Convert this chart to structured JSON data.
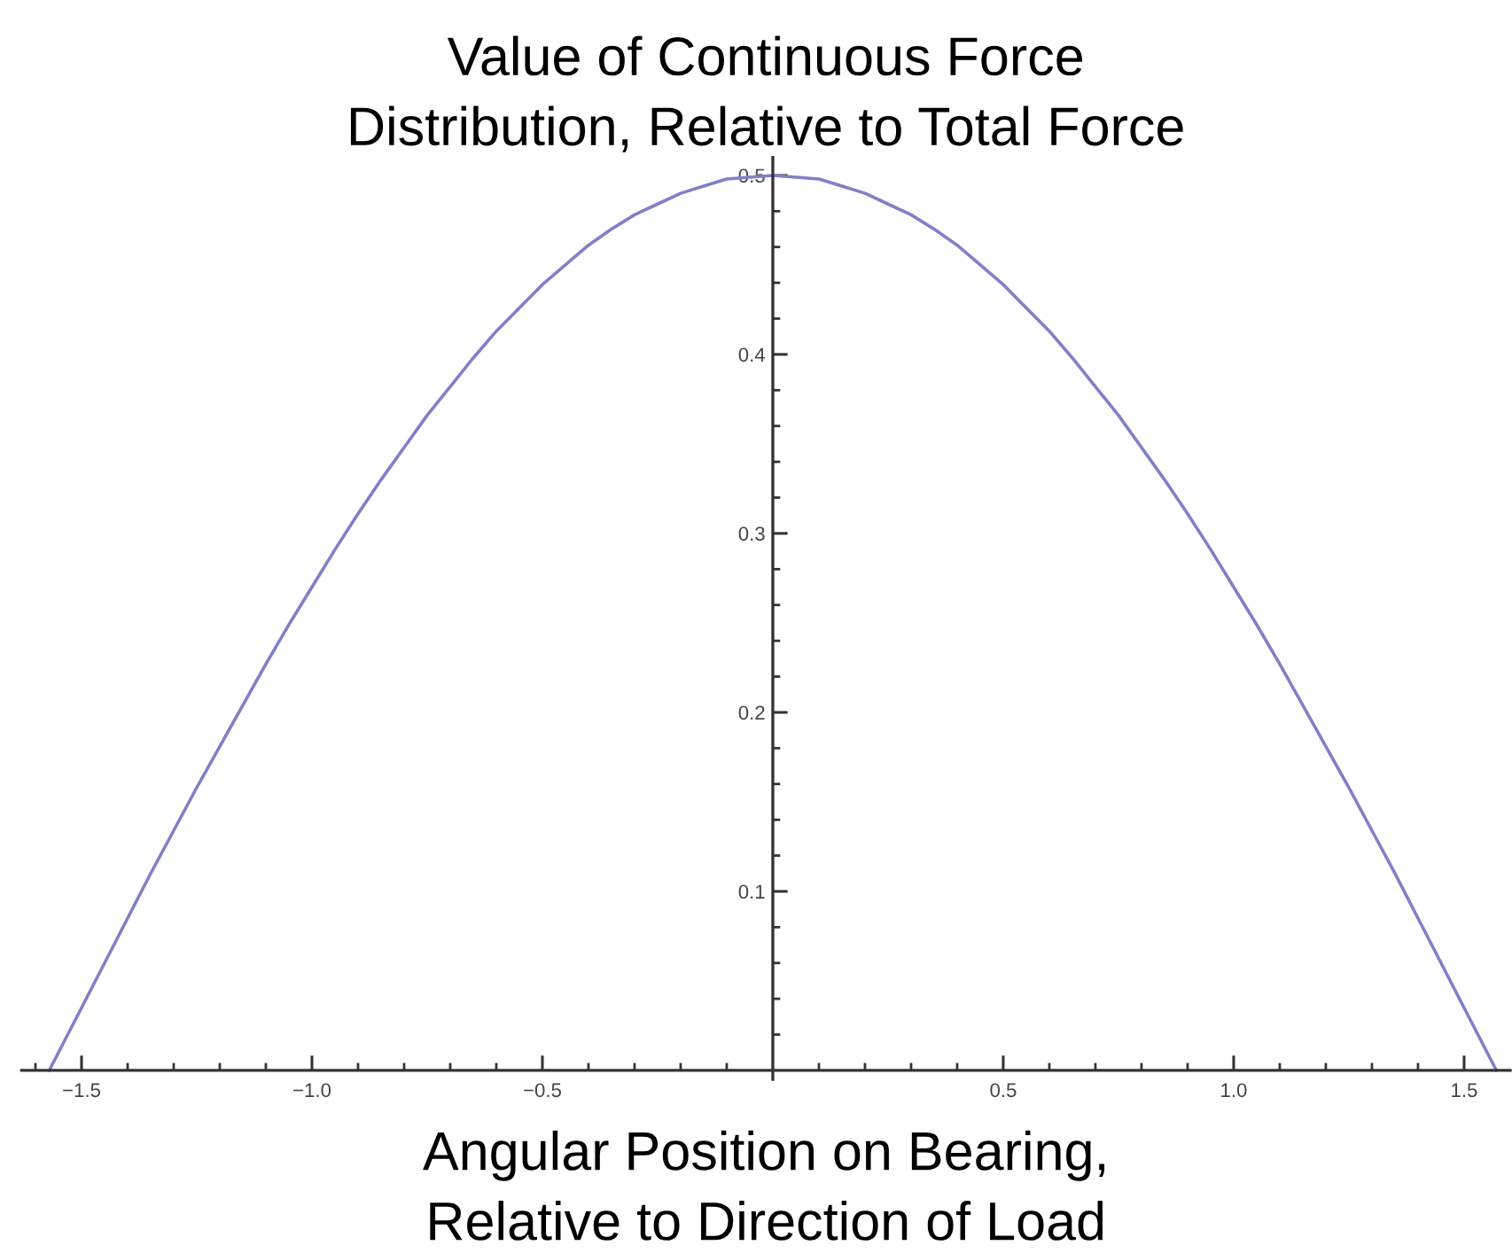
{
  "chart_data": {
    "type": "line",
    "title": "Value of Continuous Force\nDistribution, Relative to Total Force",
    "xlabel": "Angular Position on Bearing,\nRelative to Direction of Load",
    "x": [
      -1.57,
      -1.55,
      -1.5,
      -1.45,
      -1.4,
      -1.35,
      -1.3,
      -1.25,
      -1.2,
      -1.15,
      -1.1,
      -1.05,
      -1.0,
      -0.95,
      -0.9,
      -0.85,
      -0.8,
      -0.75,
      -0.7,
      -0.65,
      -0.6,
      -0.55,
      -0.5,
      -0.45,
      -0.4,
      -0.35,
      -0.3,
      -0.25,
      -0.2,
      -0.15,
      -0.1,
      -0.05,
      0.0,
      0.05,
      0.1,
      0.15,
      0.2,
      0.25,
      0.3,
      0.35,
      0.4,
      0.45,
      0.5,
      0.55,
      0.6,
      0.65,
      0.7,
      0.75,
      0.8,
      0.85,
      0.9,
      0.95,
      1.0,
      1.05,
      1.1,
      1.15,
      1.2,
      1.25,
      1.3,
      1.35,
      1.4,
      1.45,
      1.5,
      1.55,
      1.57
    ],
    "series": [
      {
        "color": "#8080c8",
        "values": [
          0.0,
          0.01,
          0.035,
          0.06,
          0.085,
          0.11,
          0.134,
          0.158,
          0.181,
          0.204,
          0.227,
          0.249,
          0.27,
          0.291,
          0.311,
          0.33,
          0.348,
          0.366,
          0.382,
          0.398,
          0.413,
          0.426,
          0.439,
          0.45,
          0.461,
          0.47,
          0.478,
          0.484,
          0.49,
          0.494,
          0.498,
          0.499,
          0.5,
          0.499,
          0.498,
          0.494,
          0.49,
          0.484,
          0.478,
          0.47,
          0.461,
          0.45,
          0.439,
          0.426,
          0.413,
          0.398,
          0.382,
          0.366,
          0.348,
          0.33,
          0.311,
          0.291,
          0.27,
          0.249,
          0.227,
          0.204,
          0.181,
          0.158,
          0.134,
          0.11,
          0.085,
          0.06,
          0.035,
          0.01,
          0.0
        ]
      }
    ],
    "xlim": [
      -1.63,
      1.6
    ],
    "ylim": [
      -0.005,
      0.51
    ],
    "xticks": [
      {
        "value": -1.6,
        "label": null
      },
      {
        "value": -1.5,
        "label": "−1.5"
      },
      {
        "value": -1.4,
        "label": null
      },
      {
        "value": -1.3,
        "label": null
      },
      {
        "value": -1.2,
        "label": null
      },
      {
        "value": -1.1,
        "label": null
      },
      {
        "value": -1.0,
        "label": "−1.0"
      },
      {
        "value": -0.9,
        "label": null
      },
      {
        "value": -0.8,
        "label": null
      },
      {
        "value": -0.7,
        "label": null
      },
      {
        "value": -0.6,
        "label": null
      },
      {
        "value": -0.5,
        "label": "−0.5"
      },
      {
        "value": -0.4,
        "label": null
      },
      {
        "value": -0.3,
        "label": null
      },
      {
        "value": -0.2,
        "label": null
      },
      {
        "value": -0.1,
        "label": null
      },
      {
        "value": 0.1,
        "label": null
      },
      {
        "value": 0.2,
        "label": null
      },
      {
        "value": 0.3,
        "label": null
      },
      {
        "value": 0.4,
        "label": null
      },
      {
        "value": 0.5,
        "label": "0.5"
      },
      {
        "value": 0.6,
        "label": null
      },
      {
        "value": 0.7,
        "label": null
      },
      {
        "value": 0.8,
        "label": null
      },
      {
        "value": 0.9,
        "label": null
      },
      {
        "value": 1.0,
        "label": "1.0"
      },
      {
        "value": 1.1,
        "label": null
      },
      {
        "value": 1.2,
        "label": null
      },
      {
        "value": 1.3,
        "label": null
      },
      {
        "value": 1.4,
        "label": null
      },
      {
        "value": 1.5,
        "label": "1.5"
      }
    ],
    "yticks": [
      {
        "value": 0.02,
        "label": null
      },
      {
        "value": 0.04,
        "label": null
      },
      {
        "value": 0.06,
        "label": null
      },
      {
        "value": 0.08,
        "label": null
      },
      {
        "value": 0.1,
        "label": "0.1"
      },
      {
        "value": 0.12,
        "label": null
      },
      {
        "value": 0.14,
        "label": null
      },
      {
        "value": 0.16,
        "label": null
      },
      {
        "value": 0.18,
        "label": null
      },
      {
        "value": 0.2,
        "label": "0.2"
      },
      {
        "value": 0.22,
        "label": null
      },
      {
        "value": 0.24,
        "label": null
      },
      {
        "value": 0.26,
        "label": null
      },
      {
        "value": 0.28,
        "label": null
      },
      {
        "value": 0.3,
        "label": "0.3"
      },
      {
        "value": 0.32,
        "label": null
      },
      {
        "value": 0.34,
        "label": null
      },
      {
        "value": 0.36,
        "label": null
      },
      {
        "value": 0.38,
        "label": null
      },
      {
        "value": 0.4,
        "label": "0.4"
      },
      {
        "value": 0.42,
        "label": null
      },
      {
        "value": 0.44,
        "label": null
      },
      {
        "value": 0.46,
        "label": null
      },
      {
        "value": 0.48,
        "label": null
      },
      {
        "value": 0.5,
        "label": "0.5"
      }
    ],
    "line_style": "solid"
  }
}
